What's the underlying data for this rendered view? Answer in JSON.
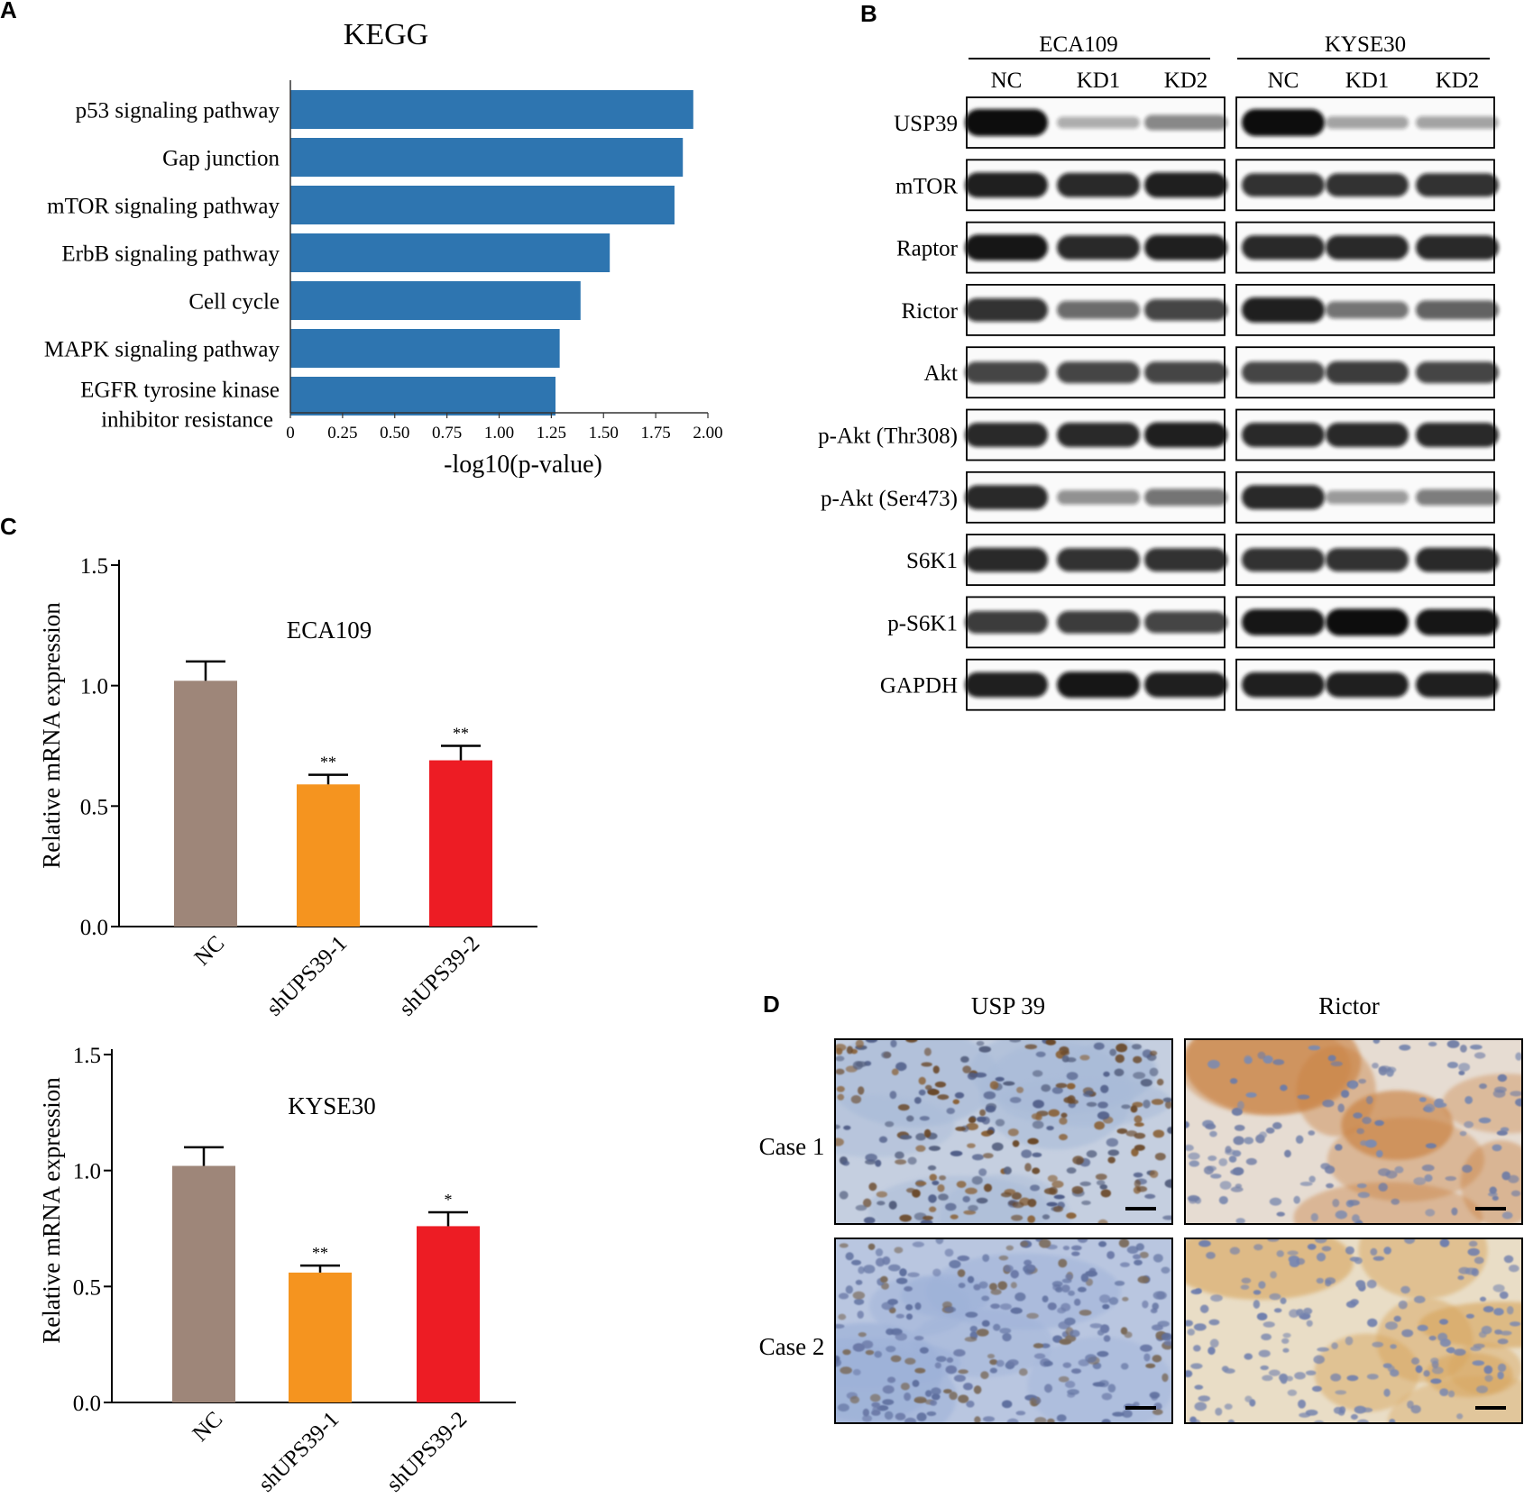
{
  "panels": {
    "A": {
      "letter": "A"
    },
    "B": {
      "letter": "B"
    },
    "C": {
      "letter": "C"
    },
    "D": {
      "letter": "D"
    }
  },
  "chart_data": [
    {
      "id": "kegg",
      "type": "bar",
      "orientation": "horizontal",
      "title": "KEGG",
      "xlabel": "-log10(p-value)",
      "categories": [
        "p53 signaling pathway",
        "Gap junction",
        "mTOR signaling pathway",
        "ErbB signaling pathway",
        "Cell cycle",
        "MAPK signaling pathway",
        "EGFR tyrosine kinase|inhibitor resistance"
      ],
      "values": [
        1.93,
        1.88,
        1.84,
        1.53,
        1.39,
        1.29,
        1.27
      ],
      "xticks": [
        "0",
        "0.25",
        "0.50",
        "0.75",
        "1.00",
        "1.25",
        "1.50",
        "1.75",
        "2.00"
      ],
      "xlim": [
        0,
        2.0
      ],
      "color": "#2e75b0",
      "grid": false
    },
    {
      "id": "eca109",
      "type": "bar",
      "title": "ECA109",
      "ylabel": "Relative mRNA expression",
      "categories": [
        "NC",
        "shUPS39-1",
        "shUPS39-2"
      ],
      "values": [
        1.02,
        0.59,
        0.69
      ],
      "errors": [
        0.08,
        0.04,
        0.06
      ],
      "significance": [
        "",
        "**",
        "**"
      ],
      "colors": [
        "#9e8679",
        "#f5941f",
        "#ed1c24"
      ],
      "yticks": [
        "0.0",
        "0.5",
        "1.0",
        "1.5"
      ],
      "ylim": [
        0,
        1.5
      ],
      "grid": false
    },
    {
      "id": "kyse30",
      "type": "bar",
      "title": "KYSE30",
      "ylabel": "Relative mRNA expression",
      "categories": [
        "NC",
        "shUPS39-1",
        "shUPS39-2"
      ],
      "values": [
        1.02,
        0.56,
        0.76
      ],
      "errors": [
        0.08,
        0.03,
        0.06
      ],
      "significance": [
        "",
        "**",
        "*"
      ],
      "colors": [
        "#9e8679",
        "#f5941f",
        "#ed1c24"
      ],
      "yticks": [
        "0.0",
        "0.5",
        "1.0",
        "1.5"
      ],
      "ylim": [
        0,
        1.5
      ],
      "grid": false
    }
  ],
  "western_blot": {
    "cell_lines": [
      "ECA109",
      "KYSE30"
    ],
    "lanes": [
      "NC",
      "KD1",
      "KD2"
    ],
    "proteins": [
      {
        "name": "USP39",
        "intensity": [
          [
            1.0,
            0.15,
            0.35
          ],
          [
            1.0,
            0.2,
            0.2
          ]
        ]
      },
      {
        "name": "mTOR",
        "intensity": [
          [
            0.9,
            0.85,
            0.9
          ],
          [
            0.8,
            0.8,
            0.8
          ]
        ]
      },
      {
        "name": "Raptor",
        "intensity": [
          [
            0.95,
            0.85,
            0.9
          ],
          [
            0.85,
            0.85,
            0.85
          ]
        ]
      },
      {
        "name": "Rictor",
        "intensity": [
          [
            0.8,
            0.5,
            0.7
          ],
          [
            0.9,
            0.45,
            0.55
          ]
        ]
      },
      {
        "name": "Akt",
        "intensity": [
          [
            0.7,
            0.7,
            0.7
          ],
          [
            0.7,
            0.75,
            0.7
          ]
        ]
      },
      {
        "name": "p-Akt (Thr308)",
        "intensity": [
          [
            0.85,
            0.85,
            0.9
          ],
          [
            0.85,
            0.85,
            0.85
          ]
        ]
      },
      {
        "name": "p-Akt (Ser473)",
        "intensity": [
          [
            0.85,
            0.3,
            0.45
          ],
          [
            0.85,
            0.25,
            0.4
          ]
        ]
      },
      {
        "name": "S6K1",
        "intensity": [
          [
            0.85,
            0.8,
            0.8
          ],
          [
            0.8,
            0.8,
            0.85
          ]
        ]
      },
      {
        "name": "p-S6K1",
        "intensity": [
          [
            0.75,
            0.75,
            0.7
          ],
          [
            0.95,
            1.0,
            0.95
          ]
        ]
      },
      {
        "name": "GAPDH",
        "intensity": [
          [
            0.9,
            0.95,
            0.9
          ],
          [
            0.9,
            0.9,
            0.9
          ]
        ]
      }
    ]
  },
  "ihc": {
    "columns": [
      "USP 39",
      "Rictor"
    ],
    "rows": [
      "Case 1",
      "Case 2"
    ]
  }
}
